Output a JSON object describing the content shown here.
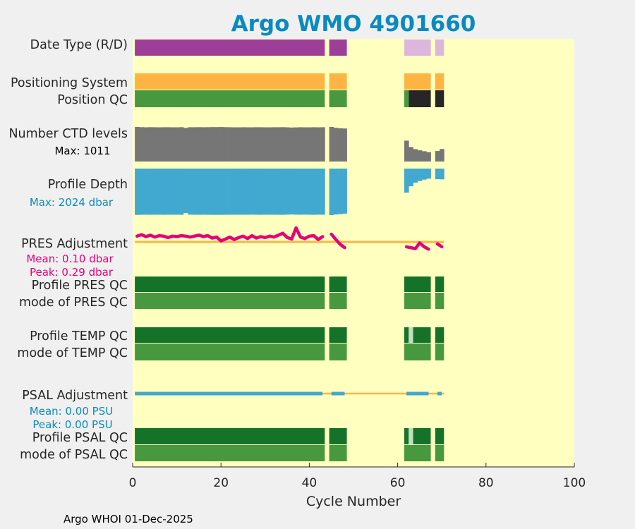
{
  "chart_data": {
    "type": "timeline",
    "title": "Argo WMO 4901660",
    "xlabel": "Cycle Number",
    "xlim": [
      0,
      100
    ],
    "xticks": [
      0,
      20,
      40,
      60,
      80,
      100
    ],
    "footer": "Argo WHOI 01-Dec-2025",
    "colors": {
      "background": "#ffffc0",
      "figure": "#f0f0f0",
      "title": "#0a8abf",
      "realtime": "#9d3f98",
      "delayed": "#dcb6dc",
      "orange": "#fdb443",
      "qc_good": "#47983f",
      "qc_dark": "#157329",
      "qc_bad": "#262626",
      "qc_light": "#bfe0c0",
      "ctd": "#767676",
      "depth": "#41a8d0",
      "pres_adj": "#e5007a",
      "psal_adj": "#41a8d0"
    },
    "row_labels": {
      "date_type": "Date Type (R/D)",
      "pos_system": "Positioning System",
      "pos_qc": "Position QC",
      "ctd_levels": "Number CTD levels",
      "ctd_max": "Max: 1011",
      "profile_depth": "Profile Depth",
      "depth_max": "Max: 2024 dbar",
      "pres_adjust": "PRES Adjustment",
      "pres_mean": "Mean: 0.10 dbar",
      "pres_peak": "Peak: 0.29 dbar",
      "profile_pres_qc": "Profile PRES QC",
      "mode_pres_qc": "mode of PRES QC",
      "profile_temp_qc": "Profile TEMP QC",
      "mode_temp_qc": "mode of TEMP QC",
      "psal_adjust": "PSAL Adjustment",
      "psal_mean": "Mean: 0.00 PSU",
      "psal_peak": "Peak: 0.00 PSU",
      "profile_psal_qc": "Profile PSAL QC",
      "mode_psal_qc": "mode of PSAL QC"
    },
    "segments": {
      "date_type": [
        {
          "from": 0.5,
          "to": 43.5,
          "color": "realtime"
        },
        {
          "from": 44.5,
          "to": 48.5,
          "color": "realtime"
        },
        {
          "from": 61.5,
          "to": 67.5,
          "color": "delayed"
        },
        {
          "from": 68.5,
          "to": 70.5,
          "color": "delayed"
        }
      ],
      "pos_system": [
        {
          "from": 0.5,
          "to": 43.5,
          "color": "orange"
        },
        {
          "from": 44.5,
          "to": 48.5,
          "color": "orange"
        },
        {
          "from": 61.5,
          "to": 67.5,
          "color": "orange"
        },
        {
          "from": 68.5,
          "to": 70.5,
          "color": "orange"
        }
      ],
      "pos_qc": [
        {
          "from": 0.5,
          "to": 43.5,
          "color": "qc_good"
        },
        {
          "from": 44.5,
          "to": 48.5,
          "color": "qc_good"
        },
        {
          "from": 61.5,
          "to": 62.5,
          "color": "qc_good"
        },
        {
          "from": 62.5,
          "to": 67.5,
          "color": "qc_bad"
        },
        {
          "from": 68.5,
          "to": 70.5,
          "color": "qc_bad"
        }
      ],
      "profile_pres_qc": [
        {
          "from": 0.5,
          "to": 43.5,
          "color": "qc_dark"
        },
        {
          "from": 44.5,
          "to": 48.5,
          "color": "qc_dark"
        },
        {
          "from": 61.5,
          "to": 67.5,
          "color": "qc_dark"
        },
        {
          "from": 68.5,
          "to": 70.5,
          "color": "qc_dark"
        }
      ],
      "mode_pres_qc": [
        {
          "from": 0.5,
          "to": 43.5,
          "color": "qc_good"
        },
        {
          "from": 44.5,
          "to": 48.5,
          "color": "qc_good"
        },
        {
          "from": 61.5,
          "to": 67.5,
          "color": "qc_good"
        },
        {
          "from": 68.5,
          "to": 70.5,
          "color": "qc_good"
        }
      ],
      "profile_temp_qc": [
        {
          "from": 0.5,
          "to": 43.5,
          "color": "qc_dark"
        },
        {
          "from": 44.5,
          "to": 48.5,
          "color": "qc_dark"
        },
        {
          "from": 61.5,
          "to": 62.5,
          "color": "qc_dark"
        },
        {
          "from": 62.5,
          "to": 63.5,
          "color": "qc_light"
        },
        {
          "from": 63.5,
          "to": 67.5,
          "color": "qc_dark"
        },
        {
          "from": 68.5,
          "to": 70.5,
          "color": "qc_dark"
        }
      ],
      "mode_temp_qc": [
        {
          "from": 0.5,
          "to": 43.5,
          "color": "qc_good"
        },
        {
          "from": 44.5,
          "to": 48.5,
          "color": "qc_good"
        },
        {
          "from": 61.5,
          "to": 67.5,
          "color": "qc_good"
        },
        {
          "from": 68.5,
          "to": 70.5,
          "color": "qc_good"
        }
      ],
      "profile_psal_qc": [
        {
          "from": 0.5,
          "to": 43.5,
          "color": "qc_dark"
        },
        {
          "from": 44.5,
          "to": 48.5,
          "color": "qc_dark"
        },
        {
          "from": 61.5,
          "to": 62.5,
          "color": "qc_dark"
        },
        {
          "from": 62.5,
          "to": 63.5,
          "color": "qc_light"
        },
        {
          "from": 63.5,
          "to": 67.5,
          "color": "qc_dark"
        },
        {
          "from": 68.5,
          "to": 70.5,
          "color": "qc_dark"
        }
      ],
      "mode_psal_qc": [
        {
          "from": 0.5,
          "to": 43.5,
          "color": "qc_good"
        },
        {
          "from": 44.5,
          "to": 48.5,
          "color": "qc_good"
        },
        {
          "from": 61.5,
          "to": 67.5,
          "color": "qc_good"
        },
        {
          "from": 68.5,
          "to": 70.5,
          "color": "qc_good"
        }
      ]
    },
    "ctd_levels": {
      "max": 1011,
      "cycles": [
        1,
        2,
        3,
        4,
        5,
        6,
        7,
        8,
        9,
        10,
        11,
        12,
        13,
        14,
        15,
        16,
        17,
        18,
        19,
        20,
        21,
        22,
        23,
        24,
        25,
        26,
        27,
        28,
        29,
        30,
        31,
        32,
        33,
        34,
        35,
        36,
        37,
        38,
        39,
        40,
        41,
        42,
        43,
        45,
        46,
        47,
        48,
        62,
        63,
        64,
        65,
        66,
        67,
        69,
        70
      ],
      "values": [
        1011,
        1005,
        1000,
        1004,
        1002,
        1000,
        1003,
        1002,
        1000,
        1001,
        1004,
        985,
        1003,
        1002,
        1005,
        1002,
        1004,
        1007,
        1006,
        1008,
        1004,
        1003,
        1000,
        1001,
        1002,
        1001,
        1000,
        1002,
        1003,
        1000,
        1001,
        1002,
        1003,
        1004,
        1000,
        994,
        999,
        1002,
        1000,
        1001,
        1003,
        1000,
        1002,
        1011,
        986,
        974,
        965,
        611,
        423,
        362,
        328,
        302,
        273,
        308,
        367
      ]
    },
    "profile_depth": {
      "max": 2024,
      "cycles": [
        1,
        2,
        3,
        4,
        5,
        6,
        7,
        8,
        9,
        10,
        11,
        12,
        13,
        14,
        15,
        16,
        17,
        18,
        19,
        20,
        21,
        22,
        23,
        24,
        25,
        26,
        27,
        28,
        29,
        30,
        31,
        32,
        33,
        34,
        35,
        36,
        37,
        38,
        39,
        40,
        41,
        42,
        43,
        45,
        46,
        47,
        48,
        62,
        63,
        64,
        65,
        66,
        67,
        69,
        70
      ],
      "values": [
        2015,
        2010,
        2005,
        2008,
        2007,
        2006,
        2009,
        2007,
        2005,
        2006,
        2008,
        1930,
        2007,
        2006,
        2010,
        2005,
        2008,
        2012,
        2011,
        2013,
        2009,
        2007,
        2005,
        2006,
        2007,
        2006,
        2004,
        2007,
        2008,
        2005,
        2006,
        2007,
        2008,
        2009,
        2004,
        1995,
        2002,
        2006,
        2004,
        2005,
        2008,
        2004,
        2006,
        2024,
        1995,
        1980,
        1960,
        1050,
        770,
        610,
        540,
        480,
        440,
        460,
        470
      ]
    },
    "pres_adjustment": {
      "mean": 0.1,
      "peak": 0.29,
      "ylim": [
        -0.35,
        0.35
      ],
      "cycles": [
        1,
        2,
        3,
        4,
        5,
        6,
        7,
        8,
        9,
        10,
        11,
        12,
        13,
        14,
        15,
        16,
        17,
        18,
        19,
        20,
        21,
        22,
        23,
        24,
        25,
        26,
        27,
        28,
        29,
        30,
        31,
        32,
        33,
        34,
        35,
        36,
        37,
        38,
        39,
        40,
        41,
        42,
        43,
        null,
        45,
        46,
        47,
        48,
        null,
        62,
        63,
        64,
        65,
        66,
        67,
        68,
        69,
        70
      ],
      "values": [
        0.12,
        0.15,
        0.11,
        0.14,
        0.1,
        0.13,
        0.12,
        0.09,
        0.12,
        0.11,
        0.13,
        0.12,
        0.1,
        0.12,
        0.14,
        0.11,
        0.13,
        0.08,
        0.1,
        0.02,
        0.06,
        0.1,
        0.05,
        0.09,
        0.12,
        0.07,
        0.13,
        0.08,
        0.11,
        0.09,
        0.12,
        0.1,
        0.14,
        0.18,
        0.09,
        0.06,
        0.29,
        0.1,
        0.07,
        0.12,
        0.13,
        0.05,
        0.11,
        null,
        0.16,
        0.05,
        -0.05,
        -0.12,
        null,
        -0.1,
        -0.12,
        -0.14,
        -0.02,
        -0.1,
        -0.15,
        null,
        -0.04,
        -0.1
      ]
    },
    "psal_adjustment": {
      "mean": 0.0,
      "peak": 0.0,
      "segments": [
        {
          "from": 0.5,
          "to": 43.0
        },
        {
          "from": 45.0,
          "to": 48.0
        },
        {
          "from": 62.0,
          "to": 67.0
        },
        {
          "from": 69.0,
          "to": 70.0
        }
      ]
    }
  }
}
